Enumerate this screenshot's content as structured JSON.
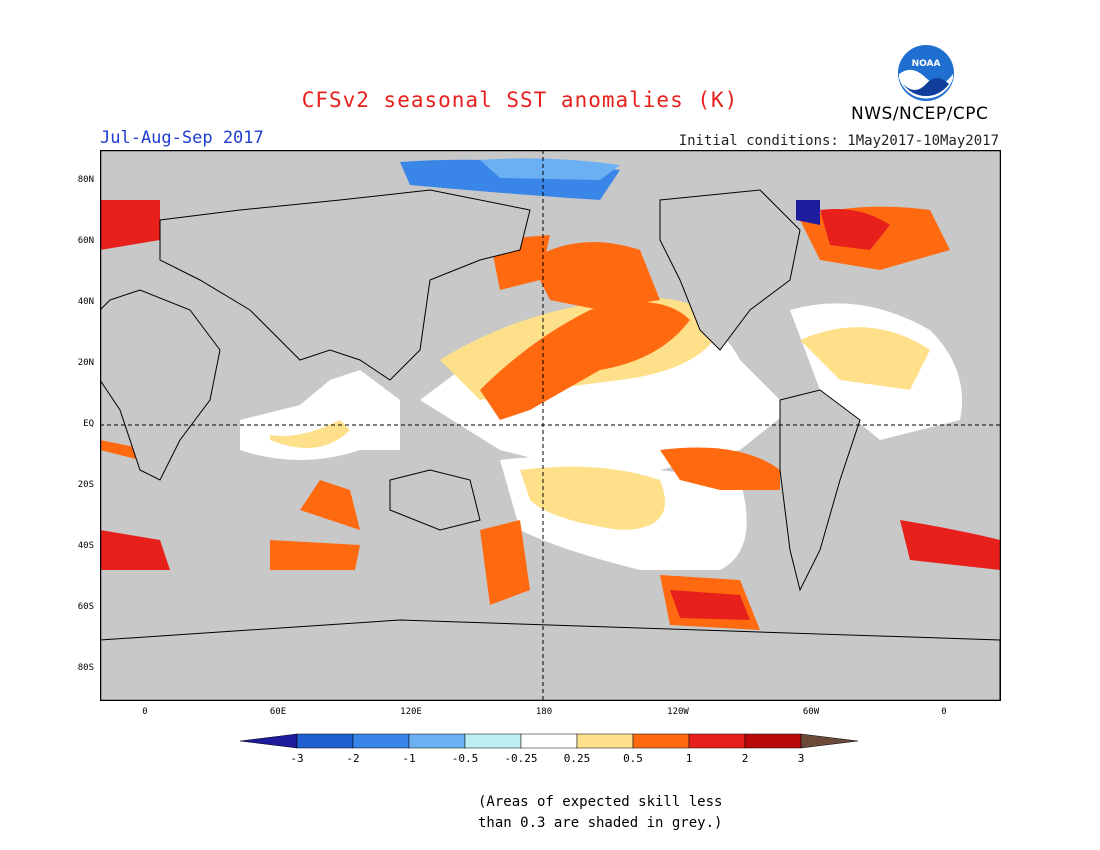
{
  "header": {
    "title": "CFSv2 seasonal SST anomalies (K)",
    "period": "Jul-Aug-Sep 2017",
    "initial_conditions": "Initial conditions: 1May2017-10May2017",
    "org": "NWS/NCEP/CPC",
    "logo_text": "NOAA"
  },
  "map": {
    "projection": "equirectangular, 20E to 20E (centered 180)",
    "y_ticks": [
      "80N",
      "60N",
      "40N",
      "20N",
      "EQ",
      "20S",
      "40S",
      "60S",
      "80S"
    ],
    "x_ticks": [
      "0",
      "60E",
      "120E",
      "180",
      "120W",
      "60W",
      "0"
    ],
    "land_color": "#c8c8c8",
    "low_skill_color": "#c8c8c8"
  },
  "colorbar": {
    "labels": [
      "-3",
      "-2",
      "-1",
      "-0.5",
      "-0.25",
      "0.25",
      "0.5",
      "1",
      "2",
      "3"
    ],
    "colors": [
      "#1e1b9c",
      "#1e5fcf",
      "#3a86e8",
      "#6ab0f2",
      "#bdf0f5",
      "#ffffff",
      "#ffe08a",
      "#ff6a10",
      "#e8201c",
      "#b80a0a",
      "#6b4a3a"
    ]
  },
  "note": {
    "line1": "(Areas of expected skill less",
    "line2": "than 0.3 are shaded in grey.)"
  }
}
